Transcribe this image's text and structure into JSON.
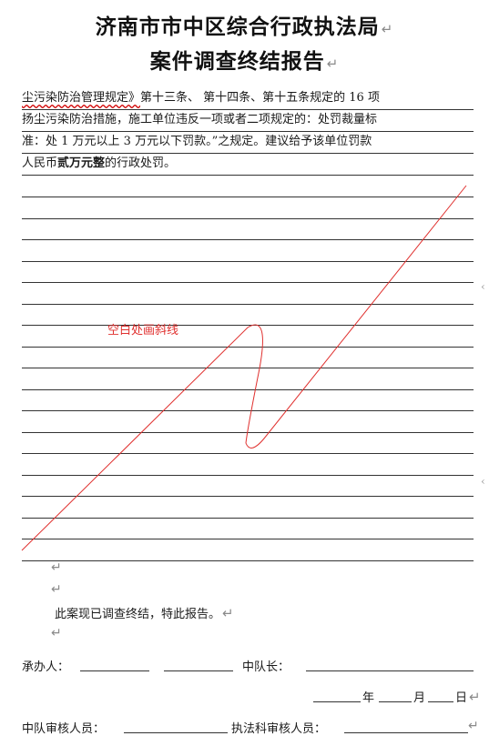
{
  "header": {
    "title_line1": "济南市市中区综合行政执法局",
    "title_line2": "案件调查终结报告",
    "para_mark": "↵"
  },
  "body_lines": [
    {
      "a": "尘污染防治管理规定》",
      "b": "第十三条、 第十四条、第十五条规定的 16 项"
    },
    {
      "a": "扬尘污染防治措施，施工单位违反一项或者二项规定的：处罚裁量标",
      "b": ""
    },
    {
      "a": "准：处 1 万元以上 3 万元以下罚款。”之规定。建议给予该单位罚款",
      "b": ""
    },
    {
      "a": "人民币",
      "strong": "贰万元整",
      "b": "的行政处罚。"
    }
  ],
  "annotation": {
    "note_text": "空白处画斜线",
    "line_color": "#e0312f"
  },
  "closing": {
    "statement": "此案现已调查终结，特此报告。",
    "handler_label": "承办人：",
    "squad_leader_label": "中队长：",
    "year_label": "年",
    "month_label": "月",
    "day_label": "日",
    "squad_reviewer_label": "中队审核人员：",
    "section_reviewer_label": "执法科审核人员："
  }
}
